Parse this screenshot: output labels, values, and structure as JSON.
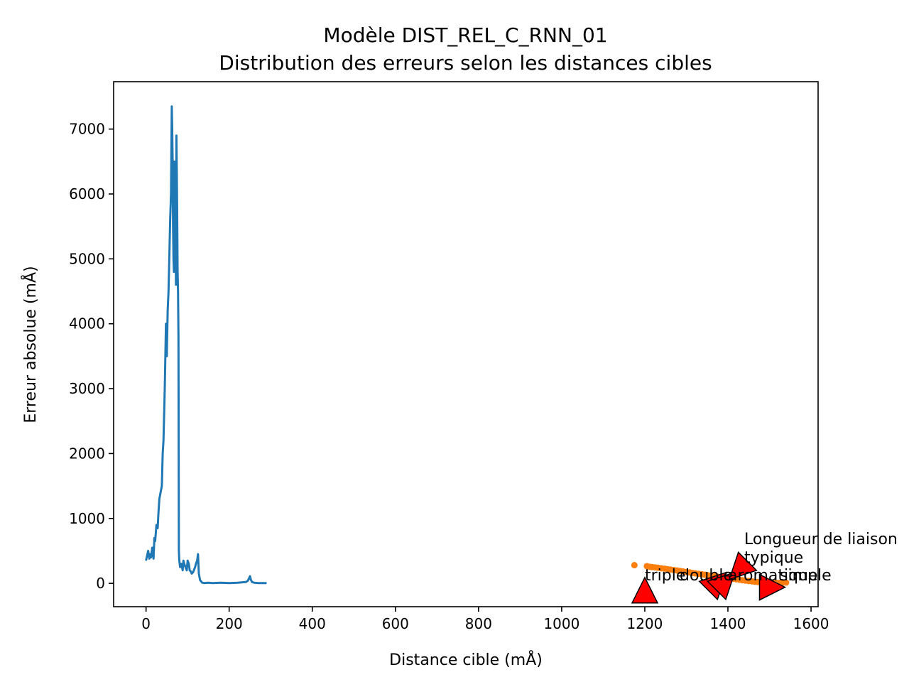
{
  "chart_data": {
    "type": "line",
    "title": [
      "Modèle DIST_REL_C_RNN_01",
      "Distribution des erreurs selon les distances cibles"
    ],
    "xlabel": "Distance cible (mÅ)",
    "ylabel": "Erreur absolue (mÅ)",
    "xlim": [
      -78,
      1617
    ],
    "ylim": [
      -360,
      7730
    ],
    "xticks": [
      0,
      200,
      400,
      600,
      800,
      1000,
      1200,
      1400,
      1600
    ],
    "yticks": [
      0,
      1000,
      2000,
      3000,
      4000,
      5000,
      6000,
      7000
    ],
    "grid": false,
    "series": [
      {
        "kind": "line",
        "color": "#1f77b4",
        "x": [
          0,
          5,
          8,
          10,
          12,
          15,
          18,
          20,
          22,
          25,
          28,
          30,
          32,
          35,
          38,
          40,
          42,
          45,
          48,
          50,
          52,
          54,
          56,
          58,
          60,
          62,
          63,
          64,
          65,
          66,
          67,
          68,
          69,
          70,
          71,
          72,
          73,
          74,
          75,
          76,
          77,
          78,
          79,
          80,
          82,
          85,
          88,
          90,
          92,
          95,
          98,
          100,
          103,
          105,
          108,
          110,
          113,
          115,
          118,
          120,
          123,
          125,
          127,
          130,
          135,
          140,
          150,
          160,
          180,
          200,
          220,
          240,
          245,
          248,
          250,
          252,
          255,
          260,
          270,
          280,
          290
        ],
        "values": [
          350,
          500,
          380,
          450,
          400,
          550,
          380,
          700,
          650,
          900,
          850,
          1100,
          1300,
          1400,
          1500,
          2000,
          2200,
          3000,
          4000,
          3500,
          4200,
          4500,
          5000,
          5600,
          6000,
          7350,
          7000,
          6500,
          5500,
          5000,
          4800,
          6500,
          6200,
          5800,
          5200,
          4600,
          6900,
          6300,
          5700,
          4800,
          4500,
          3800,
          500,
          350,
          250,
          300,
          200,
          350,
          300,
          250,
          200,
          350,
          300,
          200,
          180,
          150,
          170,
          200,
          250,
          300,
          350,
          450,
          150,
          50,
          10,
          5,
          10,
          5,
          10,
          5,
          10,
          20,
          40,
          80,
          110,
          60,
          20,
          10,
          5,
          5,
          5
        ]
      },
      {
        "kind": "scatter",
        "color": "#ff7f0e",
        "x": [
          1175,
          1205,
          1212,
          1218,
          1225,
          1232,
          1240,
          1248,
          1255,
          1262,
          1270,
          1278,
          1285,
          1292,
          1300,
          1308,
          1315,
          1322,
          1330,
          1338,
          1345,
          1352,
          1360,
          1368,
          1375,
          1382,
          1390,
          1398,
          1405,
          1412,
          1420,
          1428,
          1435,
          1442,
          1450,
          1458,
          1465,
          1472,
          1480,
          1488,
          1495,
          1502,
          1510,
          1518,
          1525,
          1532,
          1540
        ],
        "values": [
          280,
          265,
          255,
          250,
          245,
          240,
          232,
          225,
          218,
          212,
          205,
          198,
          190,
          183,
          175,
          168,
          160,
          153,
          146,
          139,
          132,
          125,
          118,
          111,
          104,
          97,
          90,
          83,
          76,
          69,
          62,
          55,
          48,
          42,
          36,
          30,
          25,
          20,
          16,
          13,
          11,
          9,
          8,
          7,
          8,
          10,
          12
        ]
      }
    ],
    "annotations": [
      {
        "text": "triple",
        "x": 1200,
        "y": -150,
        "arrow_dir": "up"
      },
      {
        "text": "double",
        "x": 1370,
        "y": 0,
        "arrow_dir": "up-right"
      },
      {
        "text": "aromatique",
        "x": 1390,
        "y": 0,
        "arrow_dir": "up-right"
      },
      {
        "text": "simple",
        "x": 1500,
        "y": -60,
        "arrow_dir": "right"
      },
      {
        "text": "Longueur de liaison\ntypique",
        "x": 1430,
        "y": 230,
        "arrow_dir": "down-left"
      }
    ]
  }
}
